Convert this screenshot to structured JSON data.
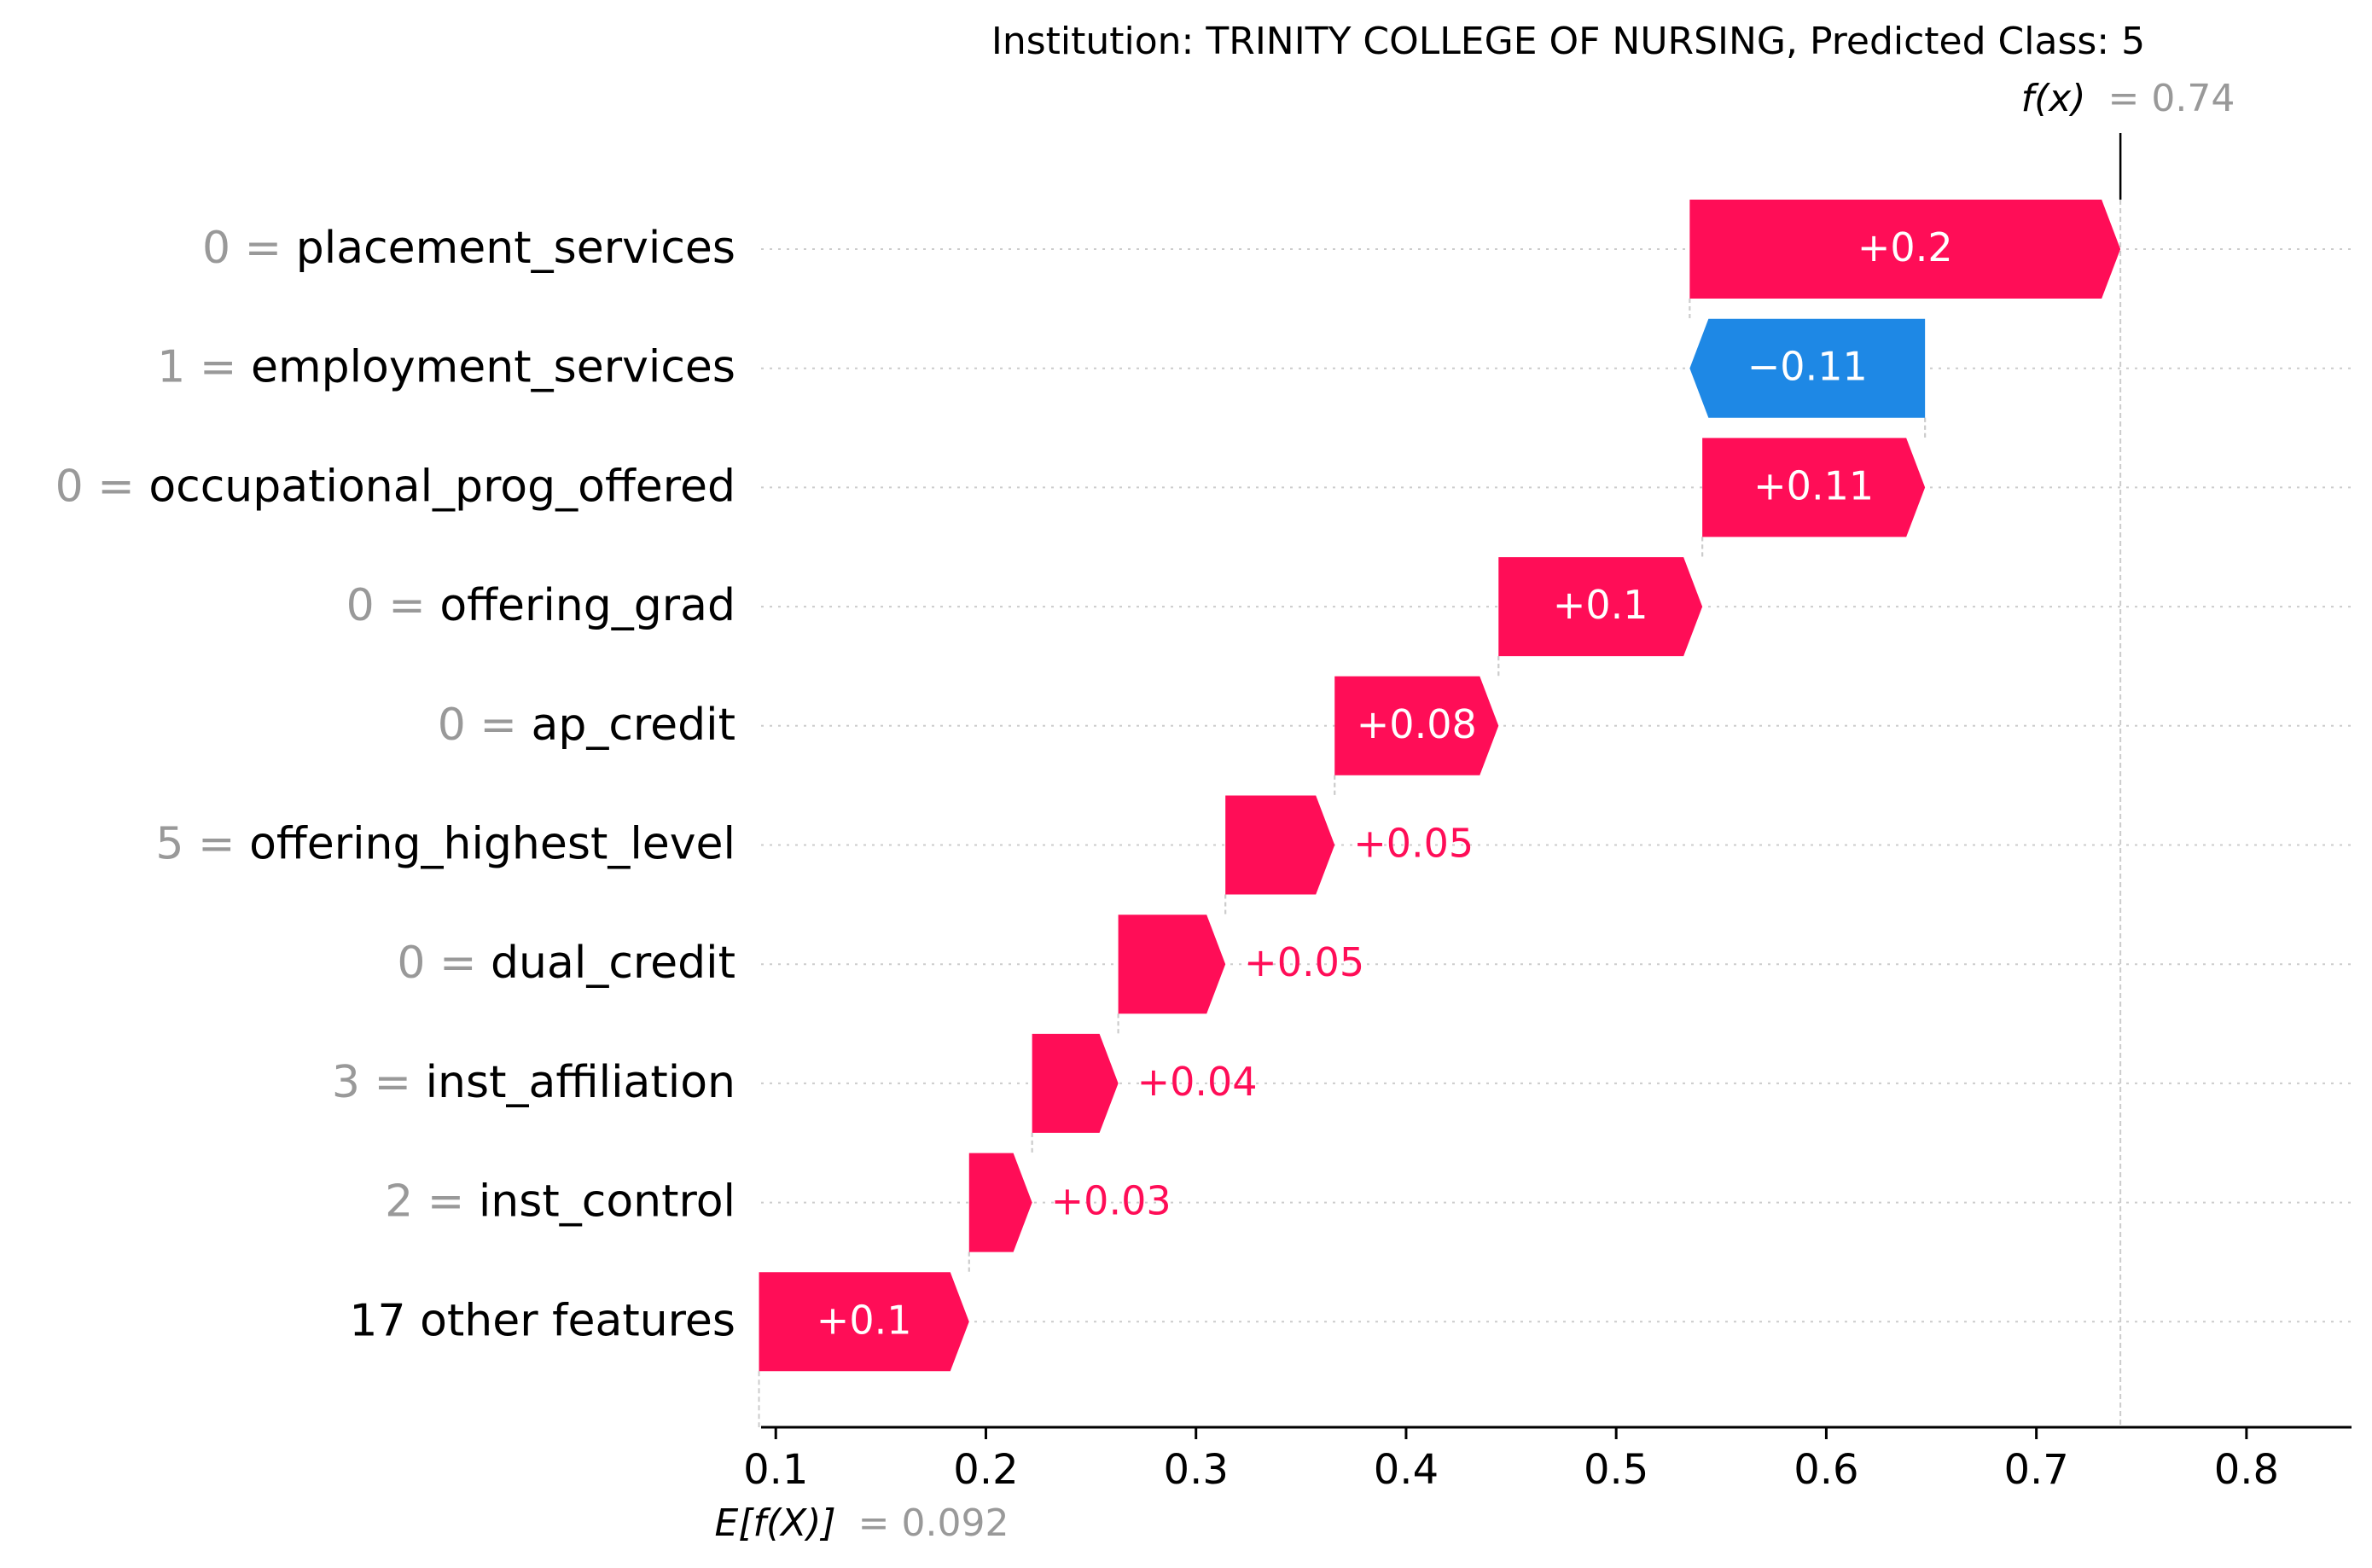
{
  "chart_data": {
    "type": "waterfall",
    "title": "Institution: TRINITY COLLEGE OF NURSING, Predicted Class: 5",
    "fx_label": "f(x)",
    "fx_value": "= 0.74",
    "efx_label": "E[f(X)]",
    "efx_value": "= 0.092",
    "base_value": 0.092,
    "final_value": 0.74,
    "xlim": [
      0.093,
      0.85
    ],
    "xticks": [
      0.1,
      0.2,
      0.3,
      0.4,
      0.5,
      0.6,
      0.7,
      0.8
    ],
    "xtick_labels": [
      "0.1",
      "0.2",
      "0.3",
      "0.4",
      "0.5",
      "0.6",
      "0.7",
      "0.8"
    ],
    "features": [
      {
        "value": "0",
        "name": "placement_services",
        "start": 0.535,
        "end": 0.74,
        "label": "+0.2"
      },
      {
        "value": "1",
        "name": "employment_services",
        "start": 0.647,
        "end": 0.535,
        "label": "−0.11"
      },
      {
        "value": "0",
        "name": "occupational_prog_offered",
        "start": 0.541,
        "end": 0.647,
        "label": "+0.11"
      },
      {
        "value": "0",
        "name": "offering_grad",
        "start": 0.444,
        "end": 0.541,
        "label": "+0.1"
      },
      {
        "value": "0",
        "name": "ap_credit",
        "start": 0.366,
        "end": 0.444,
        "label": "+0.08"
      },
      {
        "value": "5",
        "name": "offering_highest_level",
        "start": 0.314,
        "end": 0.366,
        "label": "+0.05"
      },
      {
        "value": "0",
        "name": "dual_credit",
        "start": 0.263,
        "end": 0.314,
        "label": "+0.05"
      },
      {
        "value": "3",
        "name": "inst_affiliation",
        "start": 0.222,
        "end": 0.263,
        "label": "+0.04"
      },
      {
        "value": "2",
        "name": "inst_control",
        "start": 0.192,
        "end": 0.222,
        "label": "+0.03"
      },
      {
        "value": "",
        "name": "17 other features",
        "start": 0.092,
        "end": 0.192,
        "label": "+0.1"
      }
    ],
    "colors": {
      "positive": "#ff0d57",
      "negative": "#1e88e5",
      "feature_value": "#999999",
      "text": "#000000",
      "grid": "#cccccc"
    }
  }
}
